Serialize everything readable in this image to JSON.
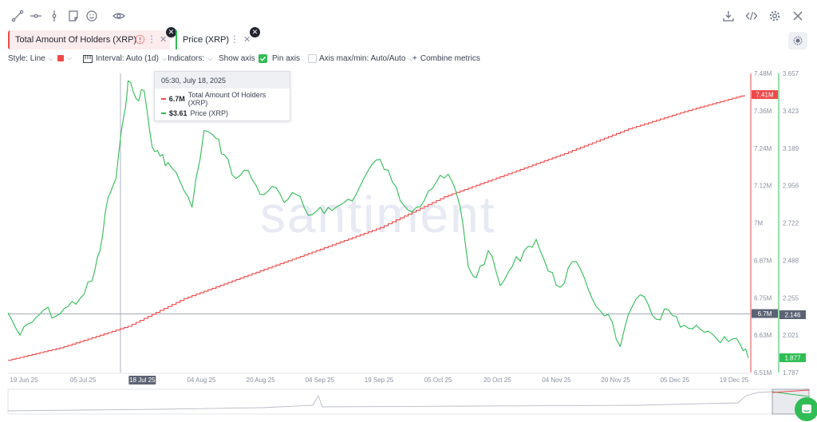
{
  "toolbar": {
    "left_icons": [
      "line-tool-icon",
      "horizontal-ray-icon",
      "vertical-line-icon",
      "note-icon",
      "emoji-icon",
      "eye-icon"
    ],
    "right_icons": [
      "download-icon",
      "embed-code-icon",
      "gear-icon",
      "close-icon"
    ]
  },
  "metrics": [
    {
      "label": "Total Amount Of Holders (XRP)",
      "color": "#ef4a4a"
    },
    {
      "label": "Price (XRP)",
      "color": "#2fbd54"
    }
  ],
  "settings": {
    "style_label": "Style: Line",
    "interval_label": "Interval: Auto (1d)",
    "indicators_label": "Indicators:",
    "show_axis_label": "Show axis",
    "pin_axis_label": "Pin axis",
    "axis_maxmin_label": "Axis max/min: Auto/Auto",
    "combine_label": "Combine metrics"
  },
  "tooltip": {
    "date": "05:30, July 18, 2025",
    "holders_value": "6.7M",
    "holders_name": "Total Amount Of Holders (XRP)",
    "price_value": "$3.61",
    "price_name": "Price (XRP)"
  },
  "watermark": "santiment",
  "colors": {
    "holders": "#ef4a4a",
    "price": "#2fbd54",
    "axis_text": "#8a90a0",
    "badge_dark": "#5c6374"
  },
  "chart_data": {
    "type": "line",
    "x_range": [
      "2025-06-18",
      "2025-12-20"
    ],
    "x_ticks": [
      "19 Jun 25",
      "05 Jul 25",
      "18 Jul 25",
      "04 Aug 25",
      "20 Aug 25",
      "04 Sep 25",
      "19 Sep 25",
      "05 Oct 25",
      "20 Oct 25",
      "04 Nov 25",
      "20 Nov 25",
      "05 Dec 25",
      "19 Dec 25"
    ],
    "highlighted_x_tick": "18 Jul 25",
    "holders_axis": {
      "ticks": [
        "7.48M",
        "7.36M",
        "7.24M",
        "7.12M",
        "7M",
        "6.87M",
        "6.75M",
        "6.63M",
        "6.51M"
      ],
      "min": 6.51,
      "max": 7.48,
      "unit": "M"
    },
    "price_axis": {
      "ticks": [
        "3.657",
        "3.423",
        "3.189",
        "2.956",
        "2.722",
        "2.488",
        "2.255",
        "2.021",
        "1.787"
      ],
      "min": 1.787,
      "max": 3.657
    },
    "badges": {
      "holders_last": "7.41M",
      "holders_cursor": "6.7M",
      "price_cursor": "2.146",
      "price_last": "1.877"
    },
    "series": [
      {
        "name": "Total Amount Of Holders (XRP)",
        "axis": "holders",
        "x": [
          "2025-06-18",
          "2025-07-01",
          "2025-07-18",
          "2025-08-01",
          "2025-08-20",
          "2025-09-04",
          "2025-09-19",
          "2025-10-05",
          "2025-10-20",
          "2025-11-04",
          "2025-11-20",
          "2025-12-05",
          "2025-12-19"
        ],
        "values": [
          6.55,
          6.59,
          6.66,
          6.75,
          6.84,
          6.91,
          6.98,
          7.08,
          7.15,
          7.22,
          7.3,
          7.36,
          7.41
        ]
      },
      {
        "name": "Price (XRP)",
        "axis": "price",
        "x": [
          "2025-06-18",
          "2025-06-21",
          "2025-06-24",
          "2025-06-27",
          "2025-06-30",
          "2025-07-03",
          "2025-07-06",
          "2025-07-09",
          "2025-07-11",
          "2025-07-13",
          "2025-07-15",
          "2025-07-17",
          "2025-07-18",
          "2025-07-20",
          "2025-07-22",
          "2025-07-24",
          "2025-07-26",
          "2025-07-28",
          "2025-07-31",
          "2025-08-03",
          "2025-08-06",
          "2025-08-09",
          "2025-08-11",
          "2025-08-14",
          "2025-08-17",
          "2025-08-20",
          "2025-08-23",
          "2025-08-26",
          "2025-08-29",
          "2025-09-01",
          "2025-09-04",
          "2025-09-07",
          "2025-09-10",
          "2025-09-13",
          "2025-09-16",
          "2025-09-19",
          "2025-09-22",
          "2025-09-25",
          "2025-09-28",
          "2025-10-01",
          "2025-10-04",
          "2025-10-07",
          "2025-10-09",
          "2025-10-11",
          "2025-10-13",
          "2025-10-16",
          "2025-10-19",
          "2025-10-22",
          "2025-10-25",
          "2025-10-28",
          "2025-10-31",
          "2025-11-03",
          "2025-11-06",
          "2025-11-09",
          "2025-11-12",
          "2025-11-15",
          "2025-11-18",
          "2025-11-21",
          "2025-11-24",
          "2025-11-27",
          "2025-11-30",
          "2025-12-03",
          "2025-12-06",
          "2025-12-09",
          "2025-12-12",
          "2025-12-15",
          "2025-12-18",
          "2025-12-20"
        ],
        "values": [
          2.16,
          2.02,
          2.1,
          2.18,
          2.14,
          2.2,
          2.25,
          2.36,
          2.55,
          2.88,
          3.0,
          3.4,
          3.61,
          3.5,
          3.55,
          3.2,
          3.14,
          3.1,
          2.98,
          2.82,
          3.3,
          3.25,
          3.15,
          3.0,
          3.05,
          2.9,
          2.95,
          2.85,
          2.9,
          2.77,
          2.82,
          2.8,
          2.85,
          2.9,
          3.05,
          3.12,
          2.98,
          2.83,
          2.82,
          2.92,
          3.02,
          2.98,
          2.82,
          2.45,
          2.38,
          2.55,
          2.33,
          2.45,
          2.55,
          2.62,
          2.42,
          2.32,
          2.48,
          2.38,
          2.2,
          2.15,
          1.95,
          2.2,
          2.26,
          2.12,
          2.18,
          2.07,
          2.06,
          2.04,
          2.0,
          1.98,
          1.96,
          1.877
        ]
      }
    ]
  }
}
